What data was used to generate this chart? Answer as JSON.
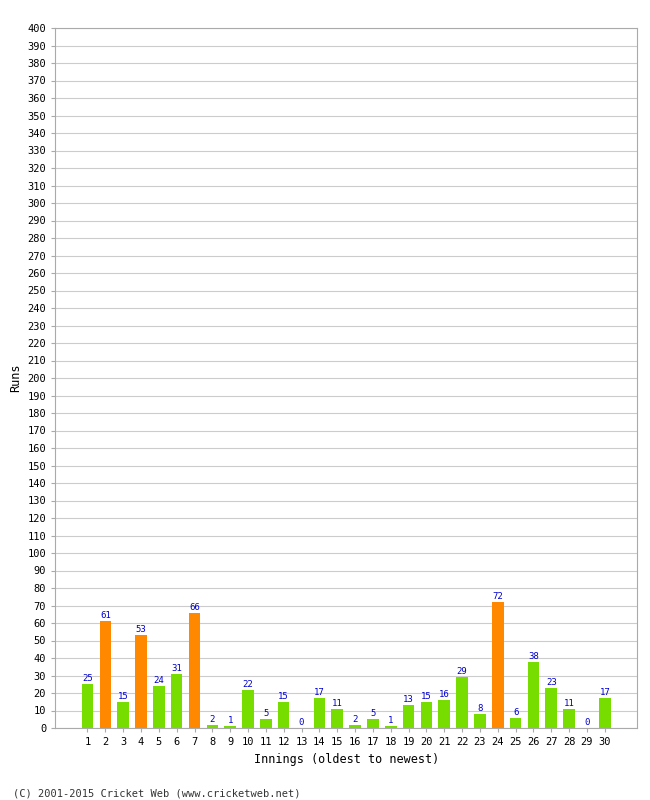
{
  "xlabel": "Innings (oldest to newest)",
  "ylabel": "Runs",
  "categories": [
    1,
    2,
    3,
    4,
    5,
    6,
    7,
    8,
    9,
    10,
    11,
    12,
    13,
    14,
    15,
    16,
    17,
    18,
    19,
    20,
    21,
    22,
    23,
    24,
    25,
    26,
    27,
    28,
    29,
    30
  ],
  "values": [
    25,
    61,
    15,
    53,
    24,
    31,
    66,
    2,
    1,
    22,
    5,
    15,
    0,
    17,
    11,
    2,
    5,
    1,
    13,
    15,
    16,
    29,
    8,
    72,
    6,
    38,
    23,
    11,
    0,
    17
  ],
  "bar_colors": [
    "#77dd00",
    "#ff8800",
    "#77dd00",
    "#ff8800",
    "#77dd00",
    "#77dd00",
    "#ff8800",
    "#77dd00",
    "#77dd00",
    "#77dd00",
    "#77dd00",
    "#77dd00",
    "#77dd00",
    "#77dd00",
    "#77dd00",
    "#77dd00",
    "#77dd00",
    "#77dd00",
    "#77dd00",
    "#77dd00",
    "#77dd00",
    "#77dd00",
    "#77dd00",
    "#ff8800",
    "#77dd00",
    "#77dd00",
    "#77dd00",
    "#77dd00",
    "#77dd00",
    "#77dd00"
  ],
  "label_color": "#0000cc",
  "ytick_step": 10,
  "ymax": 400,
  "background_color": "#ffffff",
  "grid_color": "#cccccc",
  "footer": "(C) 2001-2015 Cricket Web (www.cricketweb.net)"
}
